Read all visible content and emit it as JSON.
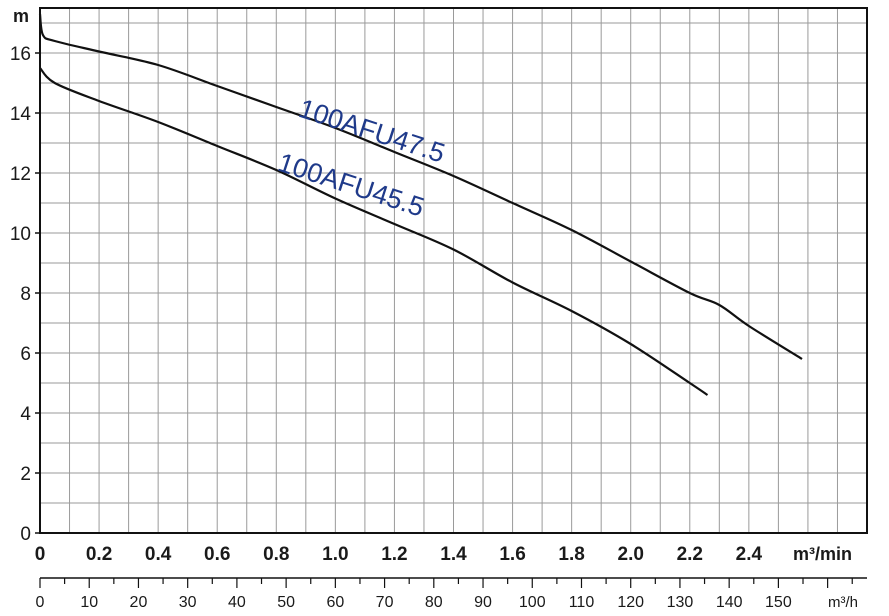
{
  "chart_data": {
    "type": "line",
    "y_unit": "m",
    "x_unit": "m³/min",
    "x2_unit": "m³/h",
    "xlim": [
      0,
      2.8
    ],
    "ylim": [
      0,
      17.5
    ],
    "x_ticks": [
      "0",
      "0.2",
      "0.4",
      "0.6",
      "0.8",
      "1.0",
      "1.2",
      "1.4",
      "1.6",
      "1.8",
      "2.0",
      "2.2",
      "2.4"
    ],
    "y_ticks": [
      "0",
      "2",
      "4",
      "6",
      "8",
      "10",
      "12",
      "14",
      "16"
    ],
    "x2_ticks": [
      "0",
      "10",
      "20",
      "30",
      "40",
      "50",
      "60",
      "70",
      "80",
      "90",
      "100",
      "110",
      "120",
      "130",
      "140",
      "150"
    ],
    "grid": true,
    "series": [
      {
        "name": "100AFU47.5",
        "x": [
          0.0,
          0.01,
          0.05,
          0.2,
          0.4,
          0.6,
          0.8,
          1.0,
          1.2,
          1.4,
          1.6,
          1.8,
          2.0,
          2.2,
          2.3,
          2.4,
          2.58
        ],
        "y": [
          17.3,
          16.6,
          16.4,
          16.05,
          15.6,
          14.9,
          14.2,
          13.5,
          12.7,
          11.9,
          11.0,
          10.1,
          9.05,
          8.0,
          7.6,
          6.9,
          5.8
        ]
      },
      {
        "name": "100AFU45.5",
        "x": [
          0.0,
          0.05,
          0.2,
          0.4,
          0.6,
          0.8,
          1.0,
          1.2,
          1.4,
          1.6,
          1.8,
          2.0,
          2.2,
          2.26
        ],
        "y": [
          15.5,
          15.0,
          14.4,
          13.7,
          12.9,
          12.1,
          11.15,
          10.3,
          9.45,
          8.35,
          7.4,
          6.3,
          5.0,
          4.6
        ]
      }
    ],
    "label_positions": [
      {
        "series": "100AFU47.5",
        "x": 0.87,
        "y": 13.9
      },
      {
        "series": "100AFU45.5",
        "x": 0.8,
        "y": 12.1
      }
    ]
  }
}
